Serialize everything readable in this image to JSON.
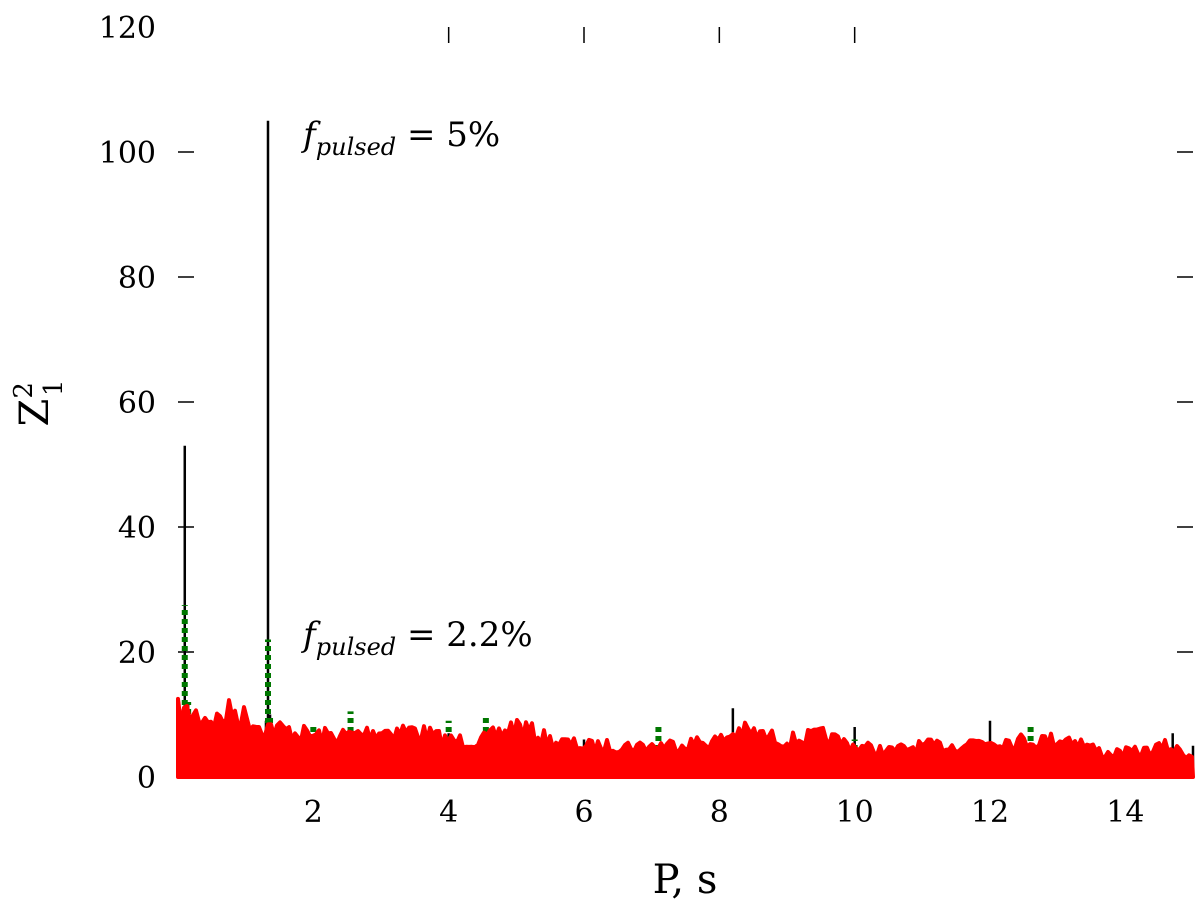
{
  "chart_data": {
    "type": "line",
    "xlabel": "P, s",
    "ylabel": {
      "base": "Z",
      "superscript": "2",
      "subscript": "1"
    },
    "xlim": [
      0.0,
      15.0
    ],
    "ylim": [
      0,
      120
    ],
    "xticks": [
      2,
      4,
      6,
      8,
      10,
      12,
      14
    ],
    "yticks": [
      0,
      20,
      40,
      60,
      80,
      100,
      120
    ],
    "x_tick_labels": [
      "2",
      "4",
      "6",
      "8",
      "10",
      "12",
      "14"
    ],
    "y_tick_labels": [
      "0",
      "20",
      "40",
      "60",
      "80",
      "100",
      "120"
    ],
    "grid": false,
    "legend": "none",
    "annotations": [
      {
        "prefix": "f",
        "subscript": "pulsed",
        "suffix": " = 5%",
        "x": 1.85,
        "y": 101
      },
      {
        "prefix": "f",
        "subscript": "pulsed",
        "suffix": " = 2.2%",
        "x": 1.85,
        "y": 21
      }
    ],
    "series": [
      {
        "color": "#000000",
        "style": "solid",
        "points": [
          [
            0.1,
            53
          ],
          [
            0.15,
            12
          ],
          [
            1.3,
            9
          ],
          [
            1.33,
            105
          ],
          [
            1.36,
            10
          ],
          [
            4.0,
            7
          ],
          [
            6.0,
            6
          ],
          [
            8.2,
            11
          ],
          [
            10.0,
            8
          ],
          [
            12.0,
            9
          ],
          [
            14.7,
            7
          ],
          [
            15.0,
            5
          ]
        ]
      },
      {
        "color": "#007700",
        "style": "dotted",
        "points": [
          [
            0.1,
            27.5
          ],
          [
            0.15,
            12
          ],
          [
            1.0,
            10
          ],
          [
            1.33,
            22
          ],
          [
            1.36,
            10
          ],
          [
            2.0,
            8
          ],
          [
            2.55,
            10.5
          ],
          [
            4.0,
            9
          ],
          [
            4.55,
            9.5
          ],
          [
            5.2,
            8
          ],
          [
            7.1,
            8.5
          ],
          [
            8.0,
            6.5
          ],
          [
            10.0,
            6
          ],
          [
            12.6,
            8.5
          ],
          [
            14.5,
            5.5
          ]
        ]
      },
      {
        "color": "#ff0000",
        "style": "solid",
        "envelope": [
          [
            0.0,
            12.5
          ],
          [
            0.3,
            12
          ],
          [
            0.6,
            11
          ],
          [
            0.8,
            13
          ],
          [
            1.2,
            10
          ],
          [
            2.0,
            8
          ],
          [
            2.5,
            8
          ],
          [
            3.0,
            9
          ],
          [
            3.5,
            9
          ],
          [
            4.0,
            7
          ],
          [
            4.5,
            7
          ],
          [
            5.0,
            10
          ],
          [
            5.5,
            7
          ],
          [
            6.0,
            6
          ],
          [
            7.0,
            6
          ],
          [
            8.0,
            7
          ],
          [
            8.3,
            9
          ],
          [
            9.0,
            7
          ],
          [
            9.5,
            8
          ],
          [
            10.0,
            6
          ],
          [
            10.5,
            5
          ],
          [
            11.0,
            6
          ],
          [
            11.5,
            6
          ],
          [
            11.8,
            7
          ],
          [
            12.2,
            7
          ],
          [
            12.7,
            7
          ],
          [
            13.2,
            7.5
          ],
          [
            13.7,
            4.5
          ],
          [
            14.3,
            5
          ],
          [
            14.6,
            6
          ],
          [
            15.0,
            4
          ]
        ]
      }
    ]
  }
}
